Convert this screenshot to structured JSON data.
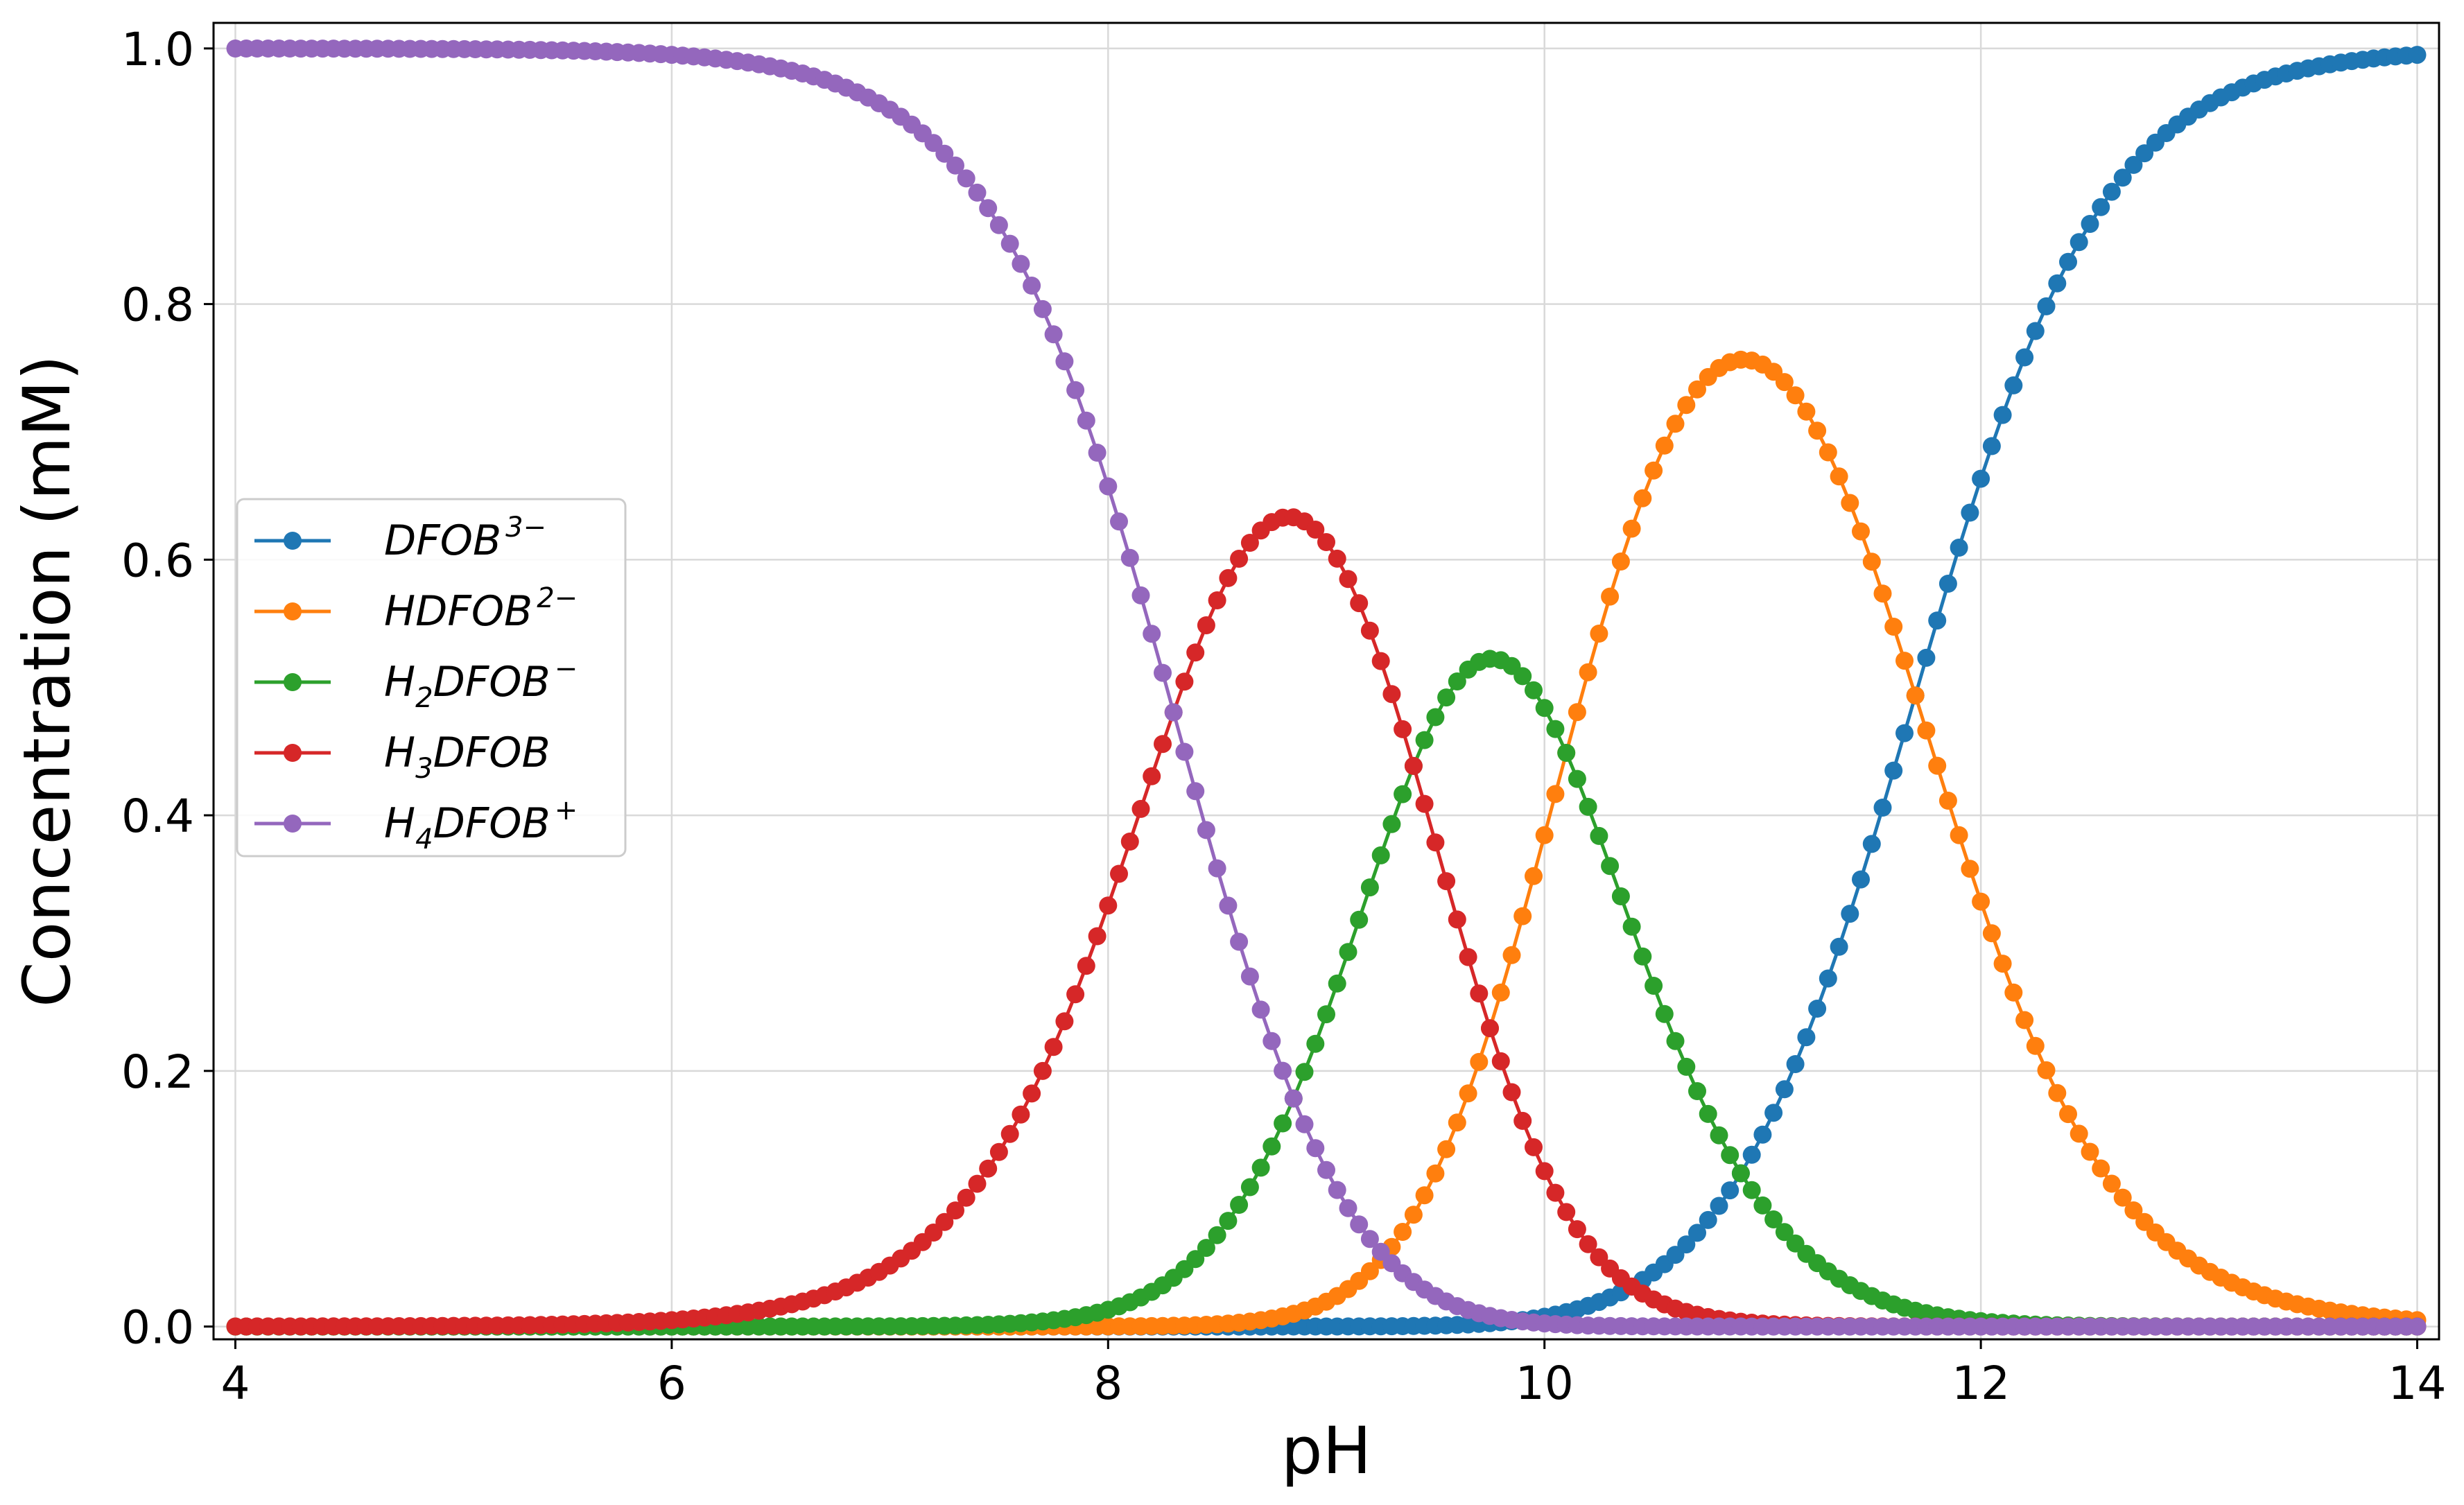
{
  "chart_data": {
    "type": "line",
    "xlabel": "pH",
    "ylabel": "Concentration (mM)",
    "xlim": [
      3.9,
      14.1
    ],
    "ylim": [
      -0.01,
      1.02
    ],
    "xticks": [
      "4",
      "6",
      "8",
      "10",
      "12",
      "14"
    ],
    "yticks": [
      "0.0",
      "0.2",
      "0.4",
      "0.6",
      "0.8",
      "1.0"
    ],
    "grid": true,
    "legend_position": "center-left",
    "pKa": [
      8.3,
      9.4,
      10.1,
      11.7
    ],
    "x_range": {
      "start": 4,
      "end": 14,
      "step": 0.05
    },
    "series": [
      {
        "name": "DFOB",
        "name_sup": "3−",
        "name_sub": "",
        "color": "#1f77b4"
      },
      {
        "name": "HDFOB",
        "name_sup": "2−",
        "name_sub": "",
        "color": "#ff7f0e"
      },
      {
        "name": "DFOB",
        "name_pre": "H",
        "name_sub": "2",
        "name_sup": "−",
        "color": "#2ca02c"
      },
      {
        "name": "DFOB",
        "name_pre": "H",
        "name_sub": "3",
        "name_sup": "",
        "color": "#d62728"
      },
      {
        "name": "DFOB",
        "name_pre": "H",
        "name_sub": "4",
        "name_sup": "+",
        "color": "#9467bd"
      }
    ]
  }
}
